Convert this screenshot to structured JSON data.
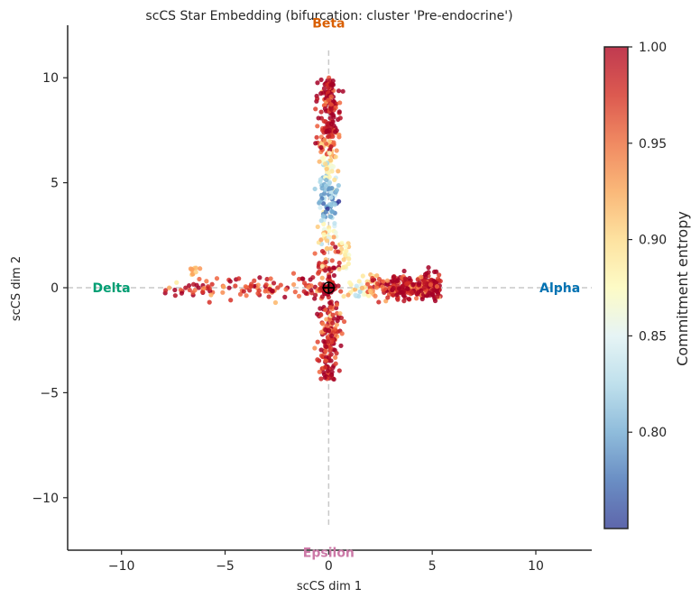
{
  "chart_data": {
    "type": "scatter",
    "title": "scCS Star Embedding  (bifurcation: cluster 'Pre-endocrine')",
    "xlabel": "scCS dim 1",
    "ylabel": "scCS dim 2",
    "xlim": [
      -12.6,
      12.7
    ],
    "ylim": [
      -12.5,
      12.5
    ],
    "xticks": [
      -10,
      -5,
      0,
      5,
      10
    ],
    "yticks": [
      -10,
      -5,
      0,
      5,
      10
    ],
    "xtick_labels": [
      "−10",
      "−5",
      "0",
      "5",
      "10"
    ],
    "ytick_labels": [
      "−10",
      "−5",
      "0",
      "5",
      "10"
    ],
    "grid": false,
    "branch_labels": [
      {
        "text": "Beta",
        "x": 0,
        "y": 12.6,
        "color": "#d95f02"
      },
      {
        "text": "Alpha",
        "x": 11.4,
        "y": 0,
        "color": "#0072b2"
      },
      {
        "text": "Delta",
        "x": -11.4,
        "y": 0,
        "color": "#009e73"
      },
      {
        "text": "Epsilon",
        "x": 0,
        "y": -12.6,
        "color": "#cc79a7"
      }
    ],
    "branches": [
      {
        "target": "Beta",
        "x_range": [
          -0.7,
          0.7
        ],
        "y_range": [
          0.4,
          10.0
        ],
        "n_points": 350
      },
      {
        "target": "Alpha",
        "x_range": [
          0.5,
          5.4
        ],
        "y_range": [
          -0.8,
          0.8
        ],
        "n_points": 350
      },
      {
        "target": "Delta",
        "x_range": [
          -7.9,
          -0.4
        ],
        "y_range": [
          -0.7,
          1.0
        ],
        "n_points": 110
      },
      {
        "target": "Epsilon",
        "x_range": [
          -0.7,
          0.7
        ],
        "y_range": [
          -4.4,
          -0.4
        ],
        "n_points": 160
      }
    ],
    "colorbar": {
      "label": "Commitment entropy",
      "min": 0.75,
      "max": 1.0,
      "ticks": [
        0.8,
        0.85,
        0.9,
        0.95,
        1.0
      ],
      "tick_labels": [
        "0.80",
        "0.85",
        "0.90",
        "0.95",
        "1.00"
      ],
      "colormap": "RdYlBu_r",
      "colors": [
        "#313695",
        "#4575b4",
        "#74add1",
        "#abd9e9",
        "#e0f3f8",
        "#ffffbf",
        "#fee090",
        "#fdae61",
        "#f46d43",
        "#d73027",
        "#a50026"
      ]
    },
    "center_marker": "+",
    "guide_lines": "dashed grey"
  }
}
